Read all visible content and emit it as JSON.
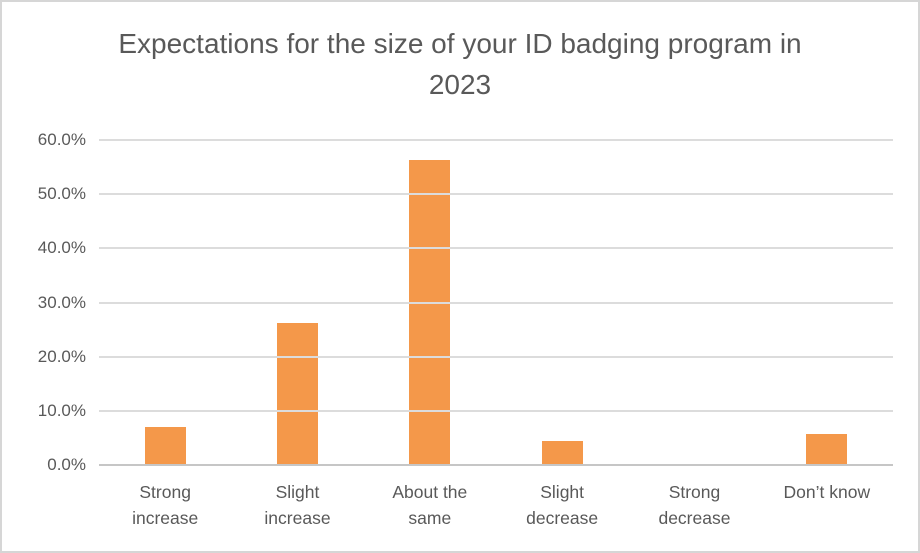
{
  "chart_data": {
    "type": "bar",
    "title": "Expectations for the size of your ID badging program in 2023",
    "categories": [
      "Strong increase",
      "Slight increase",
      "About the same",
      "Slight decrease",
      "Strong decrease",
      "Don’t know"
    ],
    "values": [
      7.0,
      26.3,
      56.3,
      4.4,
      0.0,
      5.8
    ],
    "value_unit": "%",
    "xlabel": "",
    "ylabel": "",
    "ylim": [
      0,
      60
    ],
    "ytick_step": 10,
    "ytick_labels": [
      "0.0%",
      "10.0%",
      "20.0%",
      "30.0%",
      "40.0%",
      "50.0%",
      "60.0%"
    ],
    "grid": true,
    "legend": "none",
    "colors": {
      "bar": "#f4984a",
      "grid": "#dcdcdc",
      "axis": "#c6c6c6",
      "text": "#595959",
      "border": "#d6d6d6"
    }
  }
}
